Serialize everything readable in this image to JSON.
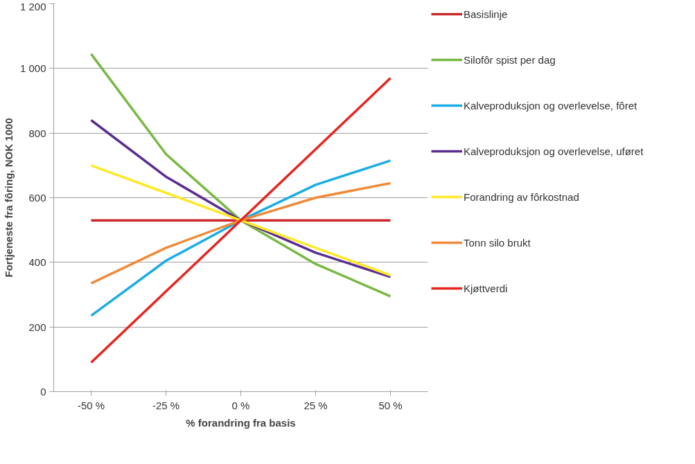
{
  "chart_data": {
    "type": "line",
    "xlabel": "% forandring fra basis",
    "ylabel": "Fortjeneste fra fôring, NOK 1000",
    "categories": [
      "-50 %",
      "-25 %",
      "0 %",
      "25 %",
      "50 %"
    ],
    "series": [
      {
        "name": "Basislinje",
        "color": "#c8282a",
        "values": [
          530,
          530,
          530,
          530,
          530
        ]
      },
      {
        "name": "Silofôr spist per dag",
        "color": "#78b843",
        "values": [
          1045,
          735,
          530,
          395,
          295
        ]
      },
      {
        "name": "Kalveproduksjon og overlevelse, fôret",
        "color": "#1bace6",
        "values": [
          235,
          405,
          530,
          640,
          715
        ]
      },
      {
        "name": "Kalveproduksjon og overlevelse, uføret",
        "color": "#5a2d91",
        "values": [
          840,
          665,
          530,
          430,
          355
        ]
      },
      {
        "name": "Forandring av fôrkostnad",
        "color": "#ffe825",
        "values": [
          700,
          615,
          530,
          445,
          360
        ]
      },
      {
        "name": "Tonn silo brukt",
        "color": "#f08a38",
        "values": [
          335,
          445,
          530,
          600,
          645
        ]
      },
      {
        "name": "Kjøttverdi",
        "color": "#e8231e",
        "values": [
          90,
          310,
          530,
          750,
          970
        ]
      }
    ],
    "ylim": [
      0,
      1200
    ],
    "yticks": [
      0,
      200,
      400,
      600,
      800,
      {
        "value": 1000,
        "label": "1 000"
      },
      {
        "value": 1200,
        "label": "1 200"
      }
    ],
    "grid": "y",
    "legend": "right",
    "marker": "none",
    "line_style": "solid"
  }
}
